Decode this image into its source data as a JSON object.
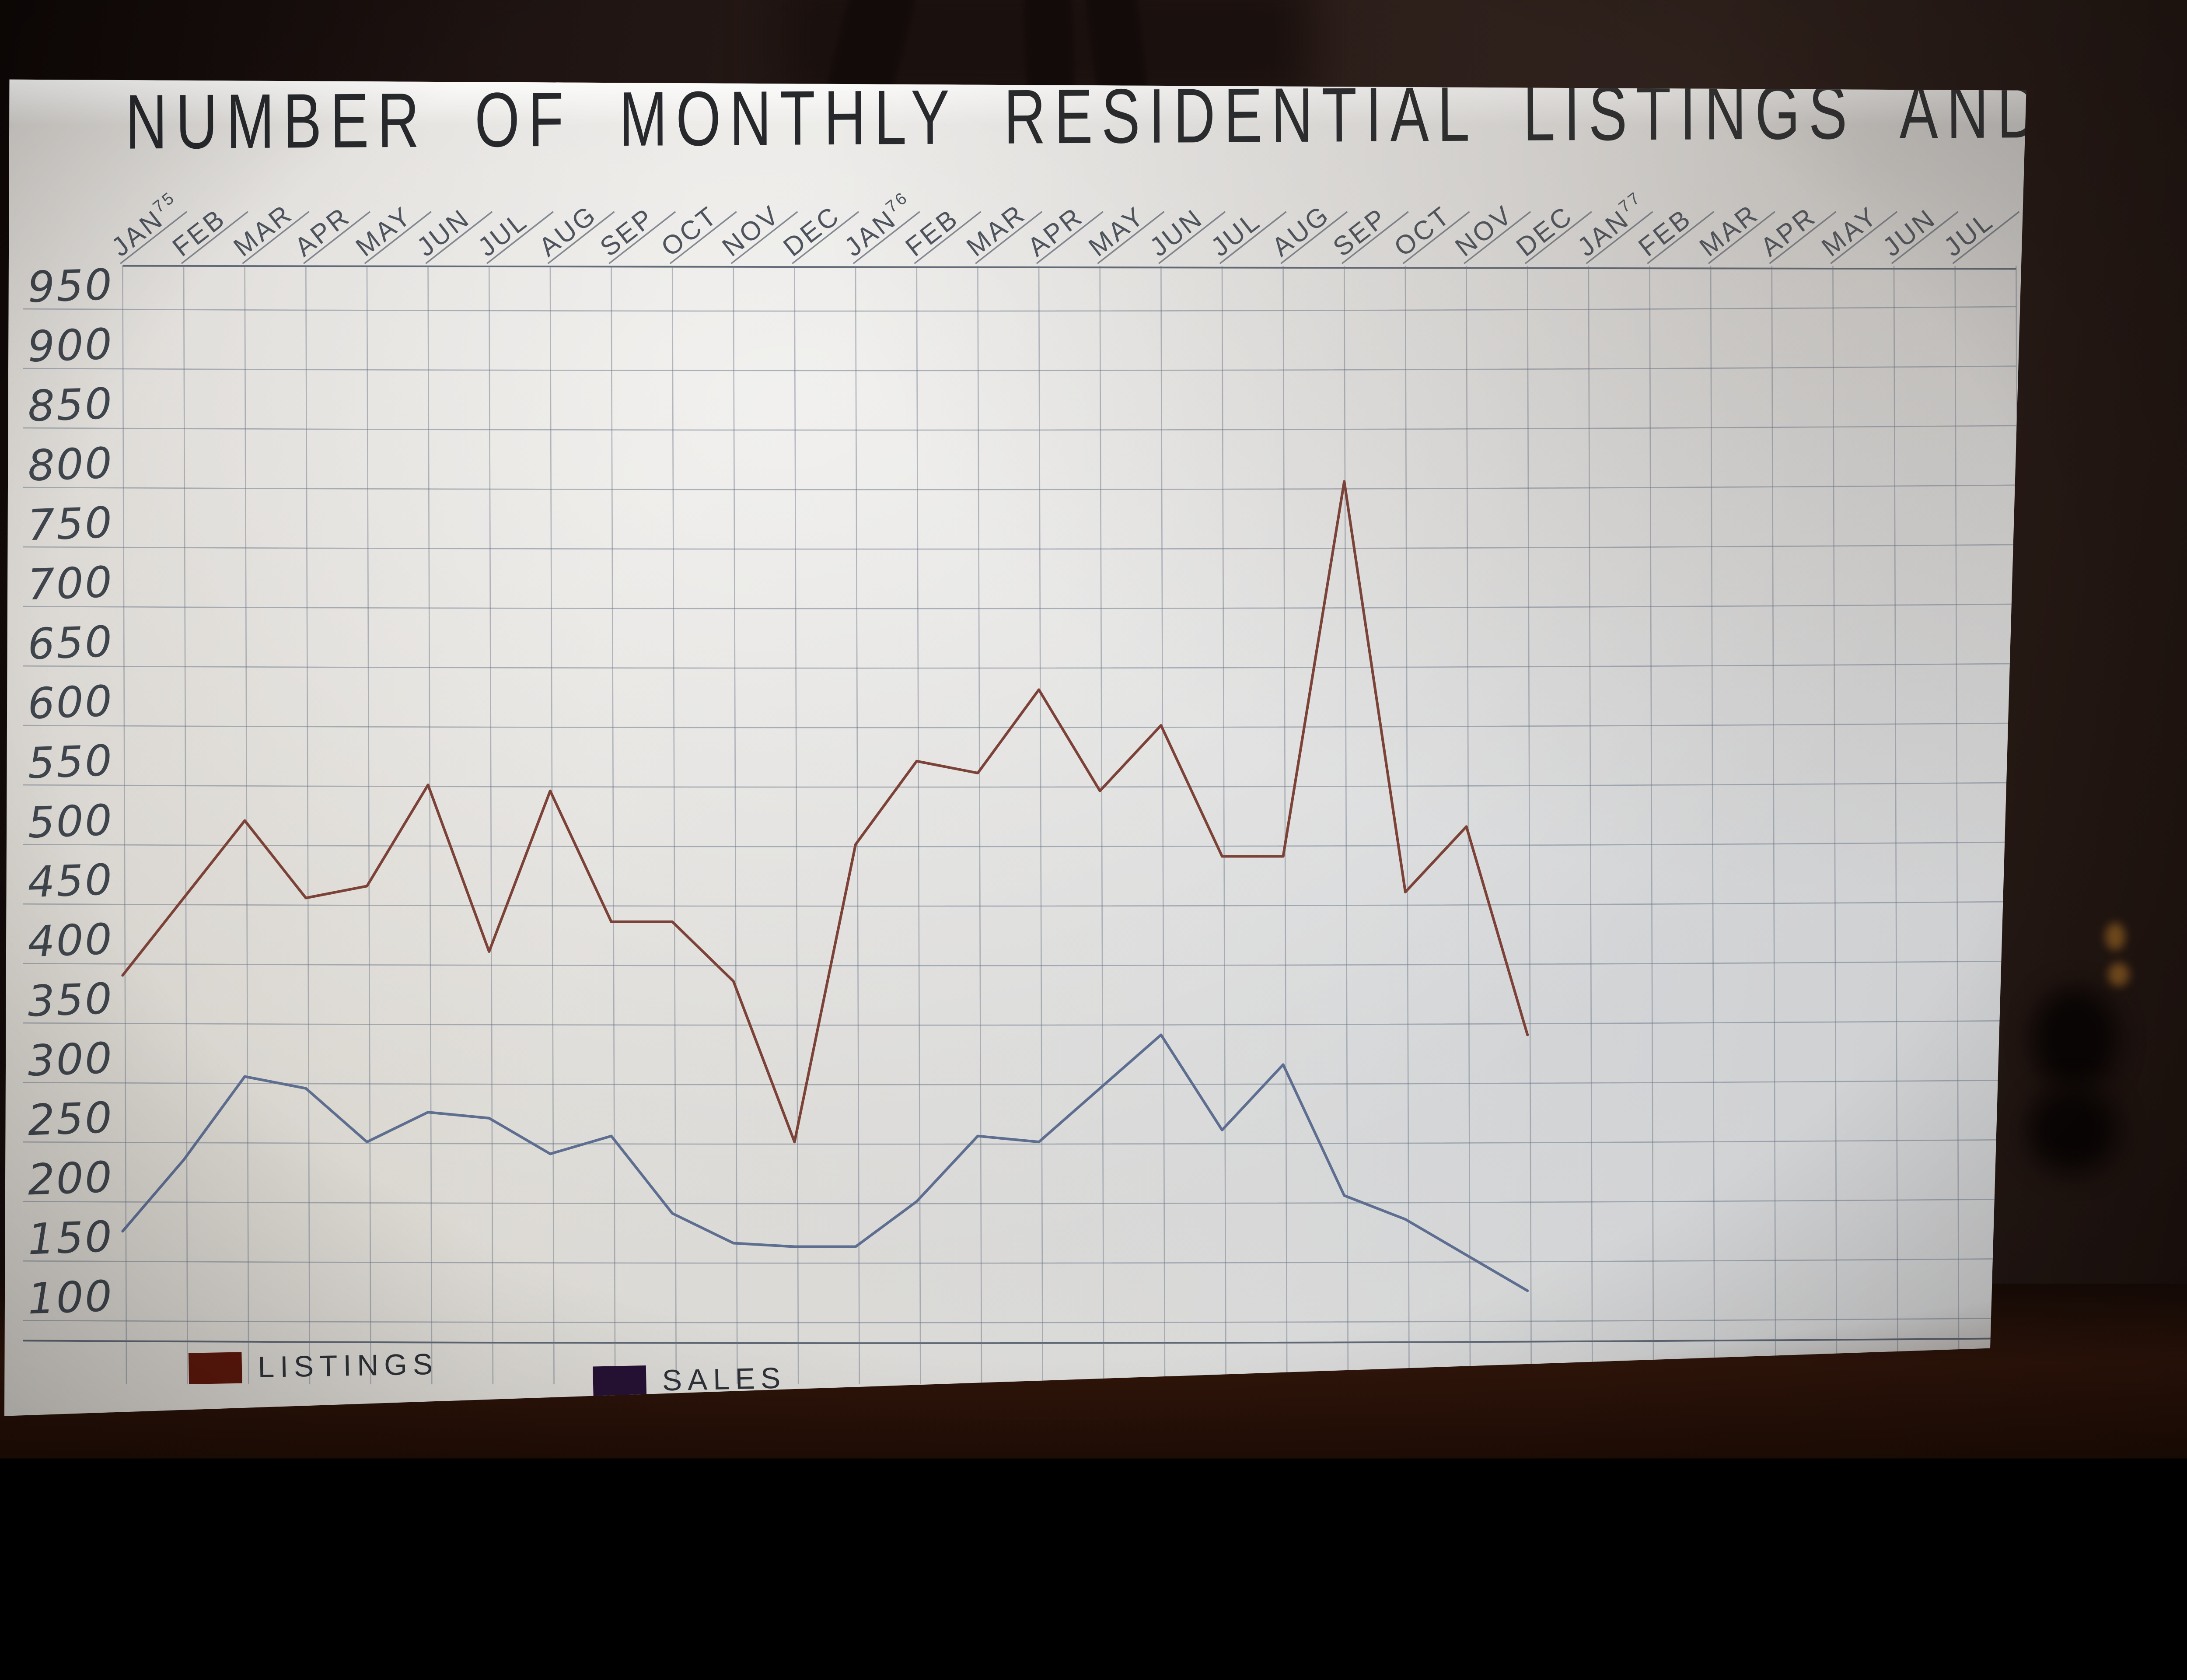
{
  "chart_data": {
    "type": "line",
    "title": "NUMBER OF MONTHLY RESIDENTIAL LISTINGS AND SALES",
    "x_labels": [
      {
        "label": "JAN",
        "year": "75"
      },
      {
        "label": "FEB"
      },
      {
        "label": "MAR"
      },
      {
        "label": "APR"
      },
      {
        "label": "MAY"
      },
      {
        "label": "JUN"
      },
      {
        "label": "JUL"
      },
      {
        "label": "AUG"
      },
      {
        "label": "SEP"
      },
      {
        "label": "OCT"
      },
      {
        "label": "NOV"
      },
      {
        "label": "DEC"
      },
      {
        "label": "JAN",
        "year": "76"
      },
      {
        "label": "FEB"
      },
      {
        "label": "MAR"
      },
      {
        "label": "APR"
      },
      {
        "label": "MAY"
      },
      {
        "label": "JUN"
      },
      {
        "label": "JUL"
      },
      {
        "label": "AUG"
      },
      {
        "label": "SEP"
      },
      {
        "label": "OCT"
      },
      {
        "label": "NOV"
      },
      {
        "label": "DEC"
      },
      {
        "label": "JAN",
        "year": "77"
      },
      {
        "label": "FEB"
      },
      {
        "label": "MAR"
      },
      {
        "label": "APR"
      },
      {
        "label": "MAY"
      },
      {
        "label": "JUN"
      },
      {
        "label": "JUL"
      }
    ],
    "y_axis": {
      "min": 100,
      "max": 950,
      "step": 50
    },
    "grid": true,
    "legend_position": "bottom-left",
    "series": [
      {
        "name": "LISTINGS",
        "line_color": "#7c4238",
        "swatch_color": "#5c170c",
        "values": [
          390,
          455,
          520,
          455,
          465,
          550,
          410,
          545,
          435,
          435,
          385,
          250,
          500,
          570,
          560,
          630,
          545,
          600,
          490,
          490,
          805,
          460,
          515,
          340
        ]
      },
      {
        "name": "SALES",
        "line_color": "#5e6e90",
        "swatch_color": "#261134",
        "values": [
          175,
          235,
          305,
          295,
          250,
          275,
          270,
          240,
          255,
          190,
          165,
          162,
          162,
          200,
          255,
          250,
          295,
          340,
          260,
          315,
          205,
          185,
          155,
          125
        ]
      }
    ]
  },
  "palette": {
    "paper": "#e0dedb",
    "grid_line": "#68748a",
    "pencil_text": "#3f454c",
    "background_dark": "#1f1412",
    "background_below": "#30150a"
  }
}
